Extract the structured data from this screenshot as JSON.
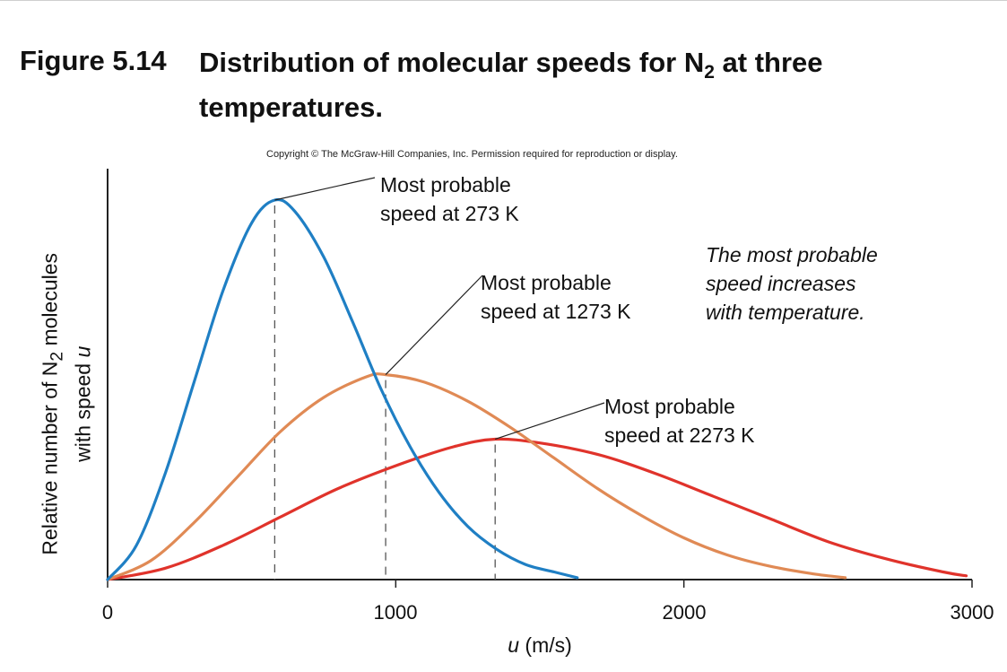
{
  "figure": {
    "number": "Figure 5.14",
    "title_main": "Distribution of molecular speeds for N",
    "title_sub": "2",
    "title_end": " at three",
    "title_line2": "temperatures.",
    "copyright": "Copyright © The McGraw-Hill Companies, Inc. Permission required for reproduction or display."
  },
  "chart_data": {
    "type": "line",
    "xlabel_var": "u",
    "xlabel_unit": " (m/s)",
    "ylabel": {
      "line1_pre": "Relative number of N",
      "line1_sub": "2",
      "line1_post": " molecules",
      "line2_pre": "with speed ",
      "line2_var": "u"
    },
    "xlim": [
      0,
      3000
    ],
    "ylim": [
      0,
      1
    ],
    "xticks": [
      "0",
      "1000",
      "2000",
      "3000"
    ],
    "grid": false,
    "series": [
      {
        "temperature_K": 273,
        "color": "#1f7fc4",
        "most_probable_speed": 580,
        "peak_relative": 1.0,
        "x": [
          0,
          100,
          200,
          300,
          400,
          500,
          580,
          650,
          750,
          850,
          950,
          1050,
          1150,
          1250,
          1350,
          1450,
          1550,
          1630
        ],
        "y": [
          0.0,
          0.09,
          0.28,
          0.52,
          0.76,
          0.94,
          1.0,
          0.97,
          0.85,
          0.68,
          0.5,
          0.35,
          0.23,
          0.14,
          0.08,
          0.04,
          0.02,
          0.005
        ]
      },
      {
        "temperature_K": 1273,
        "color": "#e08a55",
        "most_probable_speed": 965,
        "peak_relative": 0.54,
        "x": [
          0,
          150,
          300,
          450,
          600,
          750,
          900,
          965,
          1100,
          1250,
          1400,
          1550,
          1700,
          1850,
          2000,
          2150,
          2300,
          2450,
          2560
        ],
        "y": [
          0.0,
          0.05,
          0.15,
          0.27,
          0.39,
          0.48,
          0.535,
          0.54,
          0.52,
          0.47,
          0.4,
          0.32,
          0.24,
          0.17,
          0.11,
          0.065,
          0.035,
          0.015,
          0.005
        ]
      },
      {
        "temperature_K": 2273,
        "color": "#e0332b",
        "most_probable_speed": 1345,
        "peak_relative": 0.37,
        "x": [
          0,
          200,
          400,
          600,
          800,
          1000,
          1200,
          1345,
          1500,
          1700,
          1900,
          2100,
          2300,
          2500,
          2700,
          2900,
          2980
        ],
        "y": [
          0.0,
          0.03,
          0.09,
          0.165,
          0.24,
          0.3,
          0.35,
          0.37,
          0.36,
          0.33,
          0.28,
          0.22,
          0.16,
          0.1,
          0.055,
          0.02,
          0.01
        ]
      }
    ],
    "annotations": {
      "a273_line1": "Most probable",
      "a273_line2": "speed at 273 K",
      "a1273_line1": "Most probable",
      "a1273_line2": "speed at 1273 K",
      "a2273_line1": "Most probable",
      "a2273_line2": "speed at 2273 K",
      "note_line1": "The most probable",
      "note_line2": "speed increases",
      "note_line3": "with temperature."
    }
  }
}
